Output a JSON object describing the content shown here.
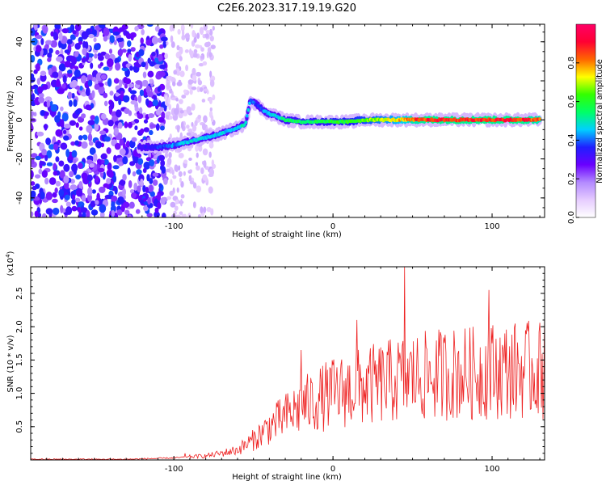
{
  "title": "C2E6.2023.317.19.19.G20",
  "chart_data": [
    {
      "type": "heatmap",
      "xlabel": "Height of straight line (km)",
      "ylabel": "Frequency (Hz)",
      "xlim": [
        -190,
        133
      ],
      "ylim": [
        -50,
        49
      ],
      "x_ticks": [
        -100,
        0,
        100
      ],
      "y_ticks": [
        -40,
        -20,
        0,
        20,
        40
      ],
      "colorbar": {
        "label": "Normalized spectral amplitude",
        "range": [
          0,
          1
        ],
        "ticks": [
          "0.0",
          "0.2",
          "0.4",
          "0.6",
          "0.8"
        ],
        "colors": [
          "#ffffff",
          "#e6ccff",
          "#b38aff",
          "#6a00ff",
          "#1f1fff",
          "#00d0ff",
          "#00ff66",
          "#33ff00",
          "#ffff00",
          "#ff6600",
          "#ff0033",
          "#ff0066"
        ]
      },
      "ridge": {
        "x": [
          -122,
          -110,
          -100,
          -90,
          -80,
          -70,
          -60,
          -55,
          -52,
          -48,
          -44,
          -40,
          -36,
          -30,
          -20,
          -10,
          0,
          10,
          20,
          30,
          40,
          50,
          60,
          70,
          80,
          90,
          100,
          110,
          120,
          130
        ],
        "y": [
          -14,
          -14,
          -13,
          -11,
          -9,
          -7,
          -4,
          -2,
          10,
          8,
          5,
          3,
          2,
          0,
          -1,
          -1,
          -1,
          -1,
          0,
          0,
          0,
          0,
          0,
          0,
          0,
          0,
          0,
          0,
          0,
          0
        ],
        "amplitude": [
          0.35,
          0.4,
          0.45,
          0.5,
          0.5,
          0.5,
          0.5,
          0.55,
          0.45,
          0.4,
          0.45,
          0.5,
          0.5,
          0.6,
          0.6,
          0.6,
          0.65,
          0.65,
          0.7,
          0.75,
          0.8,
          0.9,
          0.95,
          0.95,
          0.95,
          0.95,
          0.95,
          0.95,
          0.95,
          0.9
        ]
      }
    },
    {
      "type": "line",
      "xlabel": "Height of straight line (km)",
      "ylabel": "SNR (10 * v/v)",
      "y_multiplier": "(x10",
      "y_multiplier_exp": "4",
      "y_multiplier_close": ")",
      "xlim": [
        -190,
        133
      ],
      "ylim": [
        0,
        2.9
      ],
      "x_ticks": [
        -100,
        0,
        100
      ],
      "y_ticks": [
        "0.5",
        "1.0",
        "1.5",
        "2.0",
        "2.5"
      ],
      "line_color": "#ee2222",
      "envelope": {
        "x": [
          -190,
          -130,
          -100,
          -90,
          -80,
          -70,
          -60,
          -50,
          -40,
          -30,
          -20,
          -10,
          0,
          10,
          20,
          30,
          40,
          50,
          60,
          70,
          80,
          90,
          100,
          110,
          120,
          133
        ],
        "y": [
          0.01,
          0.01,
          0.03,
          0.05,
          0.06,
          0.1,
          0.15,
          0.3,
          0.5,
          0.65,
          0.8,
          0.9,
          1.0,
          1.05,
          1.1,
          1.15,
          1.2,
          1.25,
          1.25,
          1.3,
          1.3,
          1.3,
          1.35,
          1.35,
          1.35,
          1.35
        ]
      },
      "peaks": {
        "x": [
          -93,
          -20,
          15,
          45,
          98,
          133
        ],
        "y": [
          0.1,
          1.65,
          2.1,
          2.9,
          2.55,
          2.2
        ]
      }
    }
  ]
}
